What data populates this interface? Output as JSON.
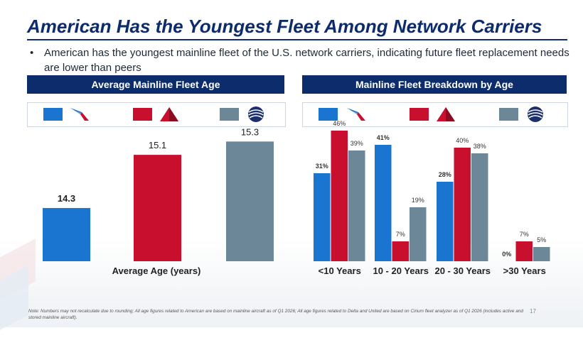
{
  "slide": {
    "title": "American Has the Youngest Fleet Among Network Carriers",
    "bullet": "American has the youngest mainline fleet of the U.S. network carriers, indicating future fleet replacement needs are lower than peers",
    "note": "Note: Numbers may not recalculate due to rounding; All age figures related to American are based on mainline aircraft as of Q1 2026; All age figures related to Delta and United are based on Cirium fleet analyzer as of Q1 2026 (includes active and stored mainline aircraft).",
    "page_number": "17"
  },
  "panels": {
    "left_header": "Average Mainline Fleet Age",
    "right_header": "Mainline Fleet Breakdown by Age"
  },
  "colors": {
    "american": "#1a75d1",
    "delta": "#c8102e",
    "united": "#6c8797",
    "navy": "#0d2c6c"
  },
  "legend": [
    {
      "carrier": "American",
      "color": "#1a75d1",
      "icon": "american-eagle-icon"
    },
    {
      "carrier": "Delta",
      "color": "#c8102e",
      "icon": "delta-widget-icon"
    },
    {
      "carrier": "United",
      "color": "#6c8797",
      "icon": "united-globe-icon"
    }
  ],
  "chart_data": [
    {
      "type": "bar",
      "categories": [
        "Average Age (years)"
      ],
      "series": [
        {
          "values": [
            14.3
          ],
          "labels": [
            "14.3"
          ],
          "color": "#1a75d1"
        },
        {
          "values": [
            15.1
          ],
          "labels": [
            "15.1"
          ],
          "color": "#c8102e"
        },
        {
          "values": [
            15.3
          ],
          "labels": [
            "15.3"
          ],
          "color": "#6c8797"
        }
      ],
      "title": "Average Mainline Fleet Age",
      "xlabel": "",
      "ylabel": "",
      "ylim": [
        13.5,
        15.4
      ],
      "grid": false
    },
    {
      "type": "bar",
      "categories": [
        "<10 Years",
        "10 - 20 Years",
        "20 - 30 Years",
        ">30 Years"
      ],
      "series": [
        {
          "values": [
            31,
            41,
            28,
            0
          ],
          "labels": [
            "31%",
            "41%",
            "28%",
            "0%"
          ],
          "color": "#1a75d1"
        },
        {
          "values": [
            46,
            7,
            40,
            7
          ],
          "labels": [
            "46%",
            "7%",
            "40%",
            "7%"
          ],
          "color": "#c8102e"
        },
        {
          "values": [
            39,
            19,
            38,
            5
          ],
          "labels": [
            "39%",
            "19%",
            "38%",
            "5%"
          ],
          "color": "#6c8797"
        }
      ],
      "title": "Mainline Fleet Breakdown by Age",
      "xlabel": "",
      "ylabel": "",
      "ylim": [
        0,
        50
      ],
      "grid": false
    }
  ]
}
